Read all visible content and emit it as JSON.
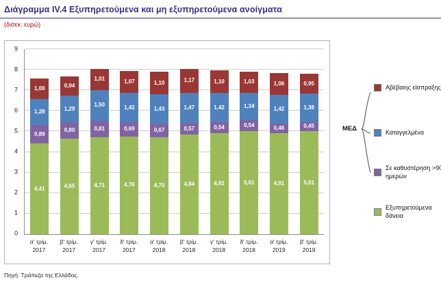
{
  "header": {
    "title": "Διάγραμμα IV.4 Εξυπηρετούμενα και μη εξυπηρετούμενα ανοίγματα",
    "subtitle": "(δισεκ. ευρώ)"
  },
  "footer": {
    "source": "Πηγή: Τράπεζα της Ελλάδος."
  },
  "legend": {
    "med_label": "ΜΕΔ",
    "items": [
      {
        "label": "Αβέβαιης είσπραξης",
        "color": "#993735"
      },
      {
        "label": "Καταγγελμένα",
        "color": "#4f81bd"
      },
      {
        "label": "Σε καθυστέρηση >90 ημερών",
        "color": "#8064a2"
      },
      {
        "label": "Εξυπηρετούμενα δάνεια",
        "color": "#9bbb59"
      }
    ]
  },
  "chart_data": {
    "type": "bar",
    "stacked": true,
    "title": "Διάγραμμα IV.4 Εξυπηρετούμενα και μη εξυπηρετούμενα ανοίγματα",
    "unit_label": "(δισεκ. ευρώ)",
    "ylim": [
      0,
      9
    ],
    "ytick_step": 1,
    "grid": true,
    "legend_position": "right",
    "categories": [
      "α' τρίμ.\n2017",
      "β' τρίμ.\n2017",
      "γ' τρίμ.\n2017",
      "δ' τρίμ.\n2017",
      "α' τρίμ.\n2018",
      "β' τρίμ.\n2018",
      "γ' τρίμ.\n2018",
      "δ' τρίμ.\n2018",
      "α' τρίμ.\n2019",
      "β' τρίμ.\n2019"
    ],
    "series": [
      {
        "name": "Εξυπηρετούμενα δάνεια",
        "color": "#9bbb59",
        "values": [
          4.41,
          4.65,
          4.71,
          4.76,
          4.7,
          4.84,
          4.91,
          5.01,
          4.91,
          5.01
        ]
      },
      {
        "name": "Σε καθυστέρηση >90 ημερών",
        "color": "#8064a2",
        "values": [
          0.89,
          0.8,
          0.81,
          0.69,
          0.67,
          0.57,
          0.54,
          0.54,
          0.46,
          0.45
        ]
      },
      {
        "name": "Καταγγελμένα",
        "color": "#4f81bd",
        "values": [
          1.28,
          1.29,
          1.5,
          1.42,
          1.43,
          1.47,
          1.42,
          1.34,
          1.42,
          1.38
        ]
      },
      {
        "name": "Αβέβαιης είσπραξης",
        "color": "#993735",
        "values": [
          1.0,
          0.94,
          1.01,
          1.07,
          1.1,
          1.17,
          1.1,
          1.03,
          1.06,
          0.95
        ]
      }
    ],
    "value_label_format": "0,00"
  }
}
